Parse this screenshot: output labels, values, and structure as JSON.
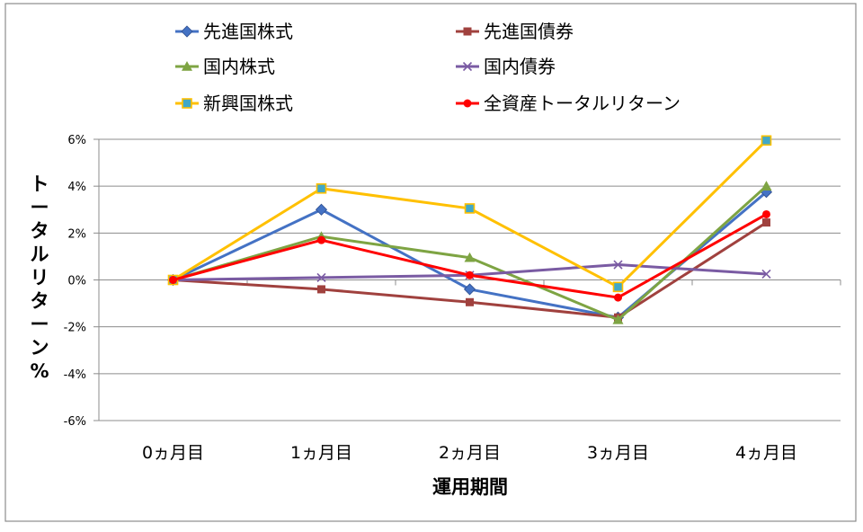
{
  "chart_data": {
    "type": "line",
    "xlabel": "運用期間",
    "ylabel": "トータルリターン%",
    "categories": [
      "0ヵ月目",
      "1ヵ月目",
      "2ヵ月目",
      "3ヵ月目",
      "4ヵ月目"
    ],
    "y_ticks": [
      "6%",
      "4%",
      "2%",
      "0%",
      "-2%",
      "-4%",
      "-6%"
    ],
    "ylim": [
      -6,
      6
    ],
    "grid": true,
    "legend_position": "top",
    "series": [
      {
        "name": "先進国株式",
        "values": [
          0,
          3.0,
          -0.4,
          -1.6,
          3.75
        ],
        "color": "#4472C4",
        "marker": "diamond"
      },
      {
        "name": "先進国債券",
        "values": [
          0,
          -0.4,
          -0.95,
          -1.6,
          2.45
        ],
        "color": "#A0413E",
        "marker": "square"
      },
      {
        "name": "国内株式",
        "values": [
          0,
          1.85,
          0.95,
          -1.7,
          4.0
        ],
        "color": "#7EA443",
        "marker": "triangle"
      },
      {
        "name": "国内債券",
        "values": [
          0,
          0.1,
          0.2,
          0.65,
          0.25
        ],
        "color": "#7A5BA3",
        "marker": "x"
      },
      {
        "name": "新興国株式",
        "values": [
          0,
          3.9,
          3.05,
          -0.3,
          5.95
        ],
        "color": "#FFC000",
        "marker": "square-blue"
      },
      {
        "name": "全資産トータルリターン",
        "values": [
          0,
          1.7,
          0.2,
          -0.75,
          2.8
        ],
        "color": "#FF0000",
        "marker": "circle"
      }
    ]
  }
}
